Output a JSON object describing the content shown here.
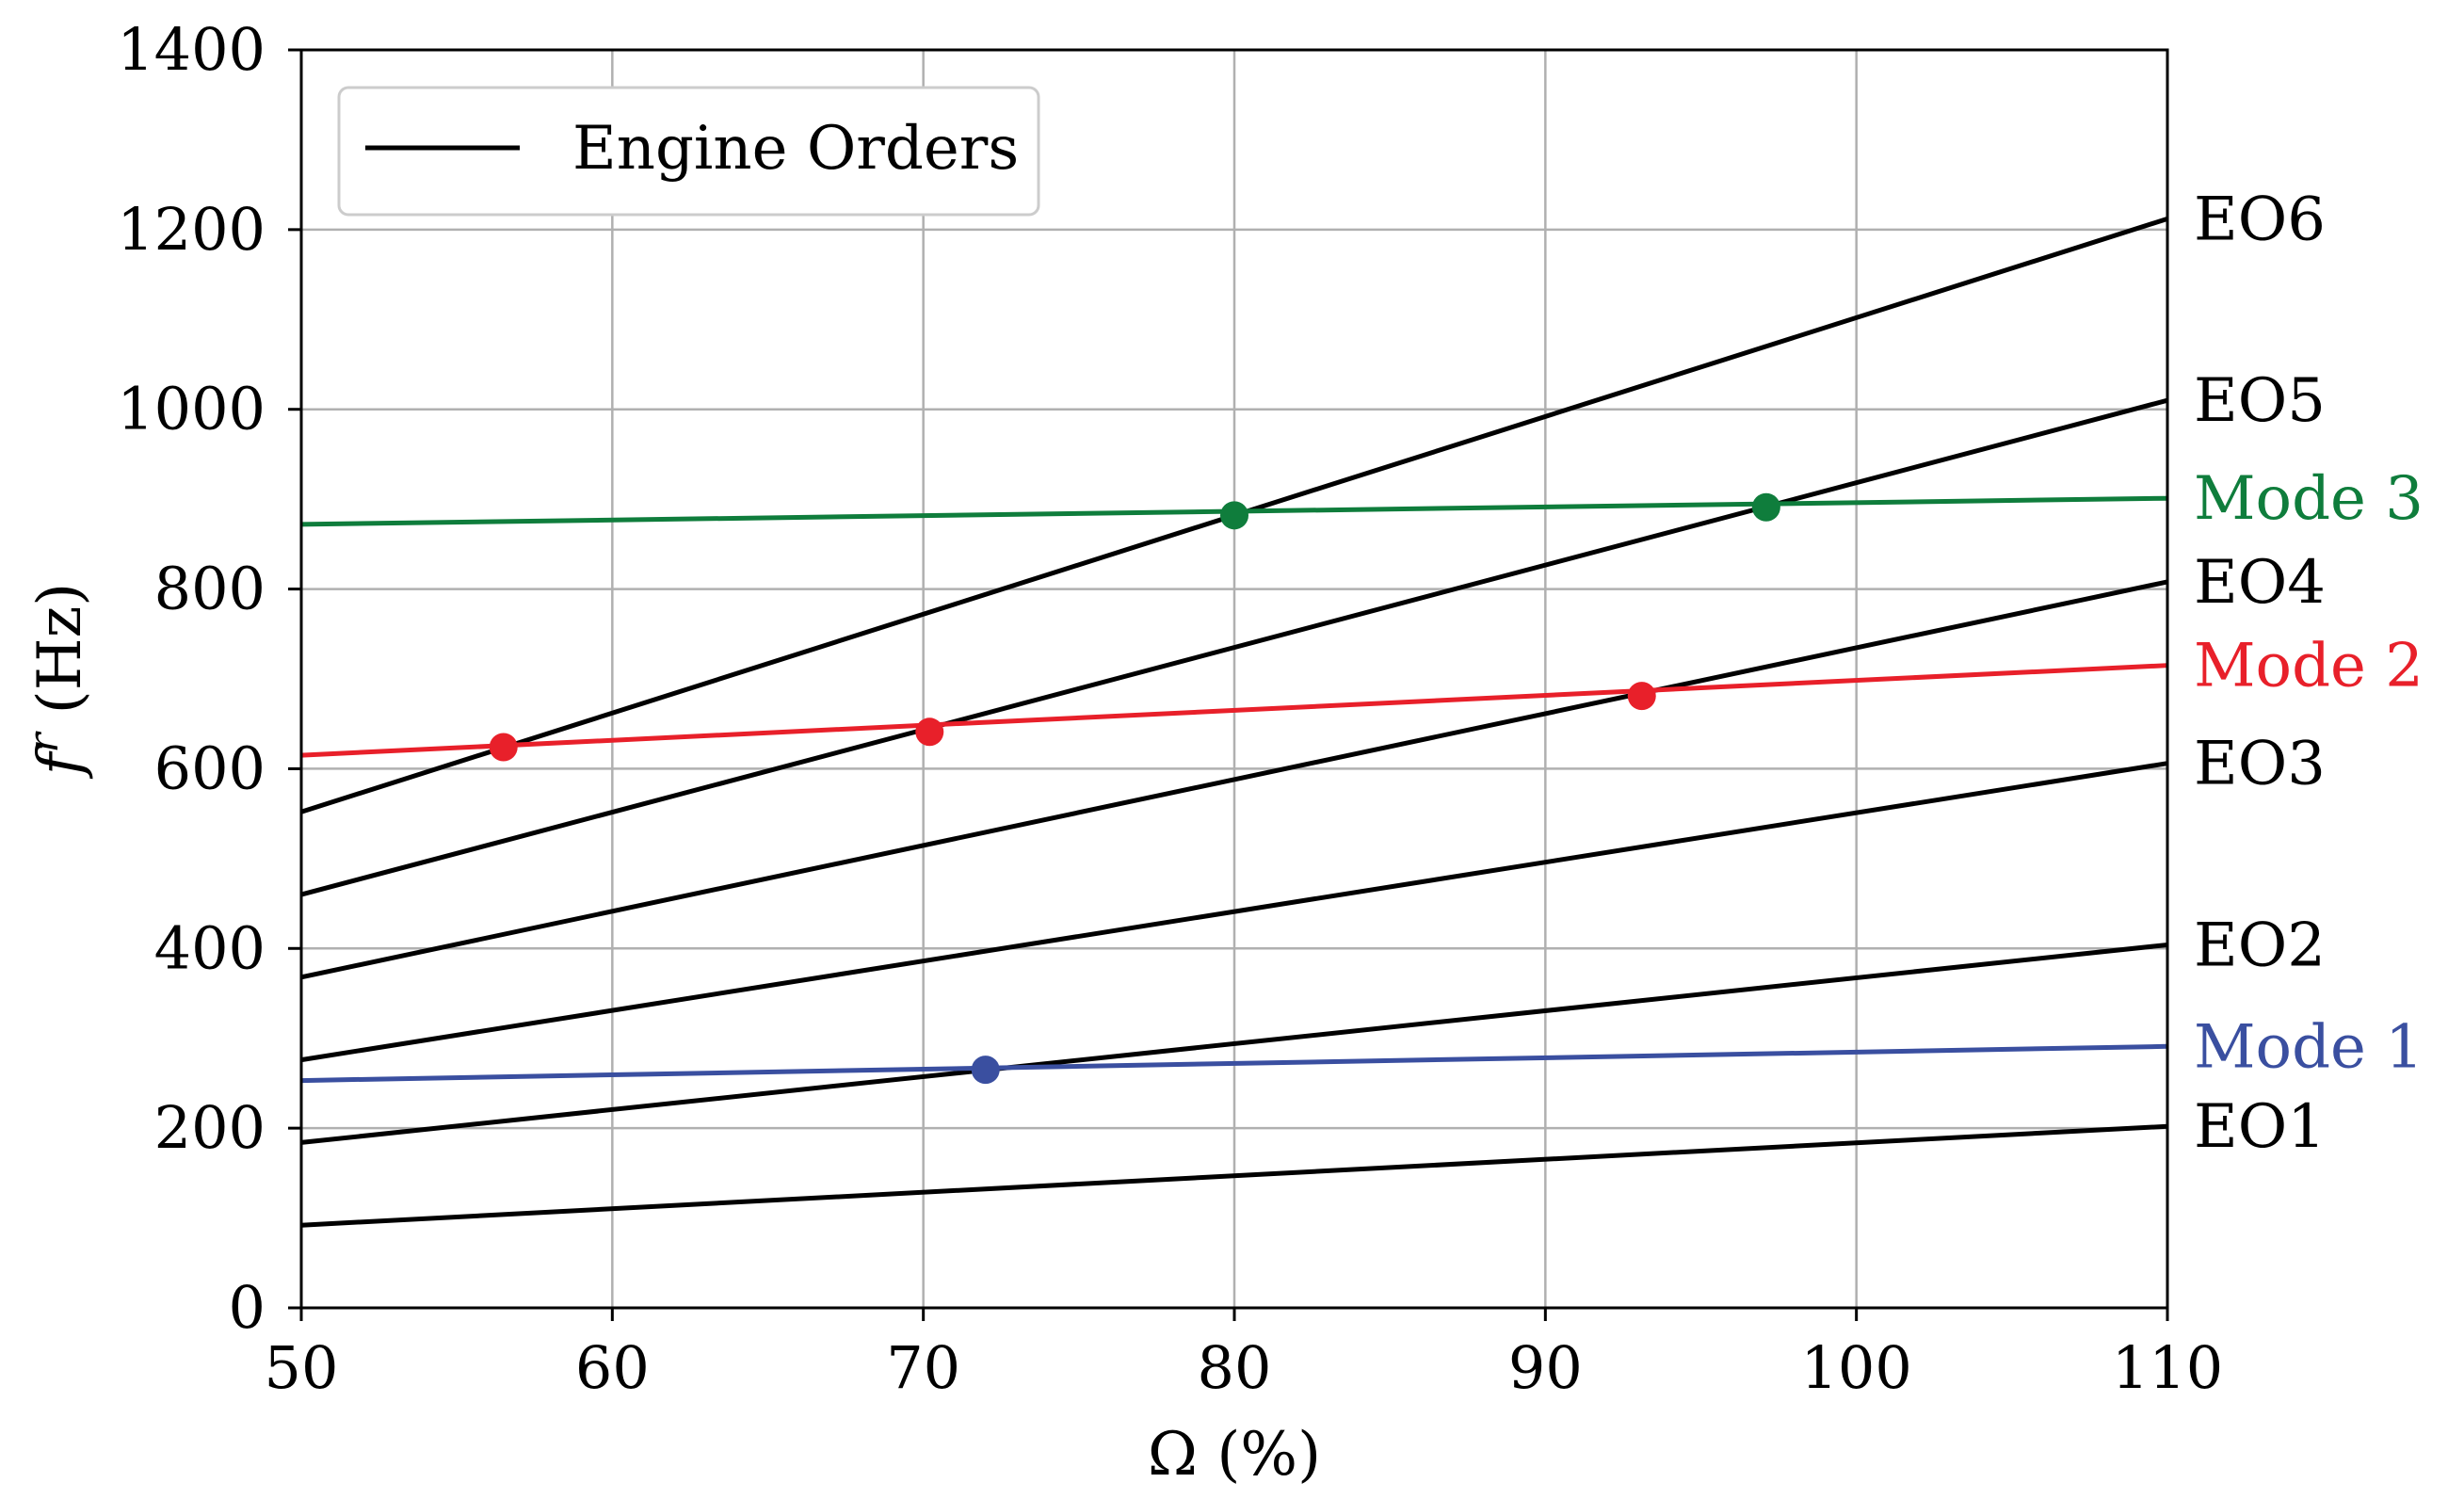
{
  "chart_data": {
    "type": "line",
    "xlabel": "Ω (%)",
    "ylabel_main": "f",
    "ylabel_sup": "r",
    "ylabel_unit": " (Hz)",
    "xlim": [
      50,
      110
    ],
    "ylim": [
      0,
      1400
    ],
    "xticks": [
      50,
      60,
      70,
      80,
      90,
      100,
      110
    ],
    "yticks": [
      0,
      200,
      400,
      600,
      800,
      1000,
      1200,
      1400
    ],
    "grid": true,
    "legend": {
      "position": "top-left",
      "entries": [
        {
          "label": "Engine Orders",
          "color": "#000000"
        }
      ]
    },
    "engine_orders": [
      {
        "name": "EO1",
        "x": [
          50,
          110
        ],
        "y": [
          92,
          202
        ]
      },
      {
        "name": "EO2",
        "x": [
          50,
          110
        ],
        "y": [
          184,
          404
        ]
      },
      {
        "name": "EO3",
        "x": [
          50,
          110
        ],
        "y": [
          276,
          606
        ]
      },
      {
        "name": "EO4",
        "x": [
          50,
          110
        ],
        "y": [
          368,
          808
        ]
      },
      {
        "name": "EO5",
        "x": [
          50,
          110
        ],
        "y": [
          460,
          1010
        ]
      },
      {
        "name": "EO6",
        "x": [
          50,
          110
        ],
        "y": [
          552,
          1212
        ]
      }
    ],
    "modes": [
      {
        "name": "Mode 1",
        "color": "#3a4fa0",
        "x": [
          50,
          110
        ],
        "y": [
          253,
          291
        ]
      },
      {
        "name": "Mode 2",
        "color": "#e8202a",
        "x": [
          50,
          110
        ],
        "y": [
          615,
          715
        ]
      },
      {
        "name": "Mode 3",
        "color": "#0f7d3c",
        "x": [
          50,
          110
        ],
        "y": [
          872,
          901
        ]
      }
    ],
    "crossings": [
      {
        "mode": "Mode 1",
        "x": 72.0,
        "y": 265
      },
      {
        "mode": "Mode 2",
        "x": 56.5,
        "y": 624
      },
      {
        "mode": "Mode 2",
        "x": 70.2,
        "y": 641
      },
      {
        "mode": "Mode 2",
        "x": 93.1,
        "y": 681
      },
      {
        "mode": "Mode 3",
        "x": 80.0,
        "y": 882
      },
      {
        "mode": "Mode 3",
        "x": 97.1,
        "y": 891
      }
    ]
  }
}
